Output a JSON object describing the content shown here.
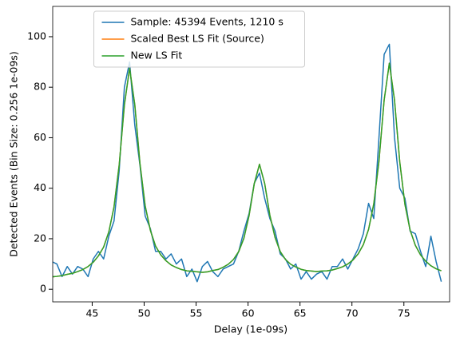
{
  "chart_data": {
    "type": "line",
    "xlabel": "Delay (1e-09s)",
    "ylabel": "Detected Events (Bin Size: 0.256 1e-09s)",
    "x": [
      41.1,
      41.6,
      42.1,
      42.6,
      43.1,
      43.6,
      44.1,
      44.6,
      45.1,
      45.6,
      46.1,
      46.6,
      47.1,
      47.6,
      48.1,
      48.6,
      49.1,
      49.6,
      50.1,
      50.6,
      51.1,
      51.6,
      52.1,
      52.6,
      53.1,
      53.6,
      54.1,
      54.6,
      55.1,
      55.6,
      56.1,
      56.6,
      57.1,
      57.6,
      58.1,
      58.6,
      59.1,
      59.6,
      60.1,
      60.6,
      61.1,
      61.6,
      62.1,
      62.6,
      63.1,
      63.6,
      64.1,
      64.6,
      65.1,
      65.6,
      66.1,
      66.6,
      67.1,
      67.6,
      68.1,
      68.6,
      69.1,
      69.6,
      70.1,
      70.6,
      71.1,
      71.6,
      72.1,
      72.6,
      73.1,
      73.6,
      74.1,
      74.6,
      75.1,
      75.6,
      76.1,
      76.6,
      77.1,
      77.6,
      78.1,
      78.6
    ],
    "series": [
      {
        "name": "Sample: 45394 Events, 1210 s",
        "color": "#1f77b4",
        "values": [
          11,
          10,
          5,
          9,
          6,
          9,
          8,
          5,
          12,
          15,
          12,
          21,
          27,
          47,
          80,
          90,
          65,
          49,
          29,
          24,
          15,
          15,
          12,
          14,
          10,
          12,
          5,
          8,
          3,
          9,
          11,
          7,
          5,
          8,
          9,
          10,
          15,
          23,
          30,
          42,
          46,
          36,
          28,
          23,
          14,
          12,
          8,
          10,
          4,
          7,
          4,
          6,
          7,
          4,
          9,
          9,
          12,
          8,
          12,
          16,
          22,
          34,
          28,
          60,
          93,
          97,
          60,
          40,
          36,
          23,
          22,
          15,
          9,
          21,
          11,
          3
        ]
      },
      {
        "name": "Scaled Best LS Fit (Source)",
        "color": "#ff7f0e",
        "values": [
          4.9,
          5.1,
          5.4,
          5.9,
          6.3,
          7.0,
          7.8,
          9.0,
          10.7,
          13.2,
          16.7,
          22.7,
          32.6,
          49.3,
          73.0,
          87.5,
          73.1,
          49.7,
          33.0,
          23.3,
          17.1,
          13.6,
          11.3,
          9.6,
          8.6,
          7.8,
          7.3,
          7.1,
          6.9,
          6.7,
          6.9,
          7.4,
          7.8,
          8.7,
          9.9,
          11.8,
          14.9,
          20.2,
          29.2,
          41.8,
          49.5,
          41.9,
          29.3,
          20.5,
          14.9,
          11.8,
          9.9,
          8.8,
          7.9,
          7.4,
          7.2,
          7.0,
          7.2,
          7.3,
          7.6,
          8.2,
          8.9,
          10.0,
          11.6,
          14.0,
          17.7,
          23.7,
          33.8,
          50.7,
          74.9,
          89.5,
          74.8,
          50.5,
          33.6,
          23.4,
          17.4,
          13.6,
          11.1,
          9.3,
          8.1,
          7.3
        ]
      },
      {
        "name": "New LS Fit",
        "color": "#2ca02c",
        "values": [
          4.9,
          5.1,
          5.4,
          5.9,
          6.3,
          7.0,
          7.8,
          9.0,
          10.7,
          13.2,
          16.7,
          22.7,
          32.6,
          49.3,
          73.0,
          87.5,
          73.1,
          49.7,
          33.0,
          23.3,
          17.1,
          13.6,
          11.3,
          9.6,
          8.6,
          7.8,
          7.3,
          7.1,
          6.9,
          6.7,
          6.9,
          7.4,
          7.8,
          8.7,
          9.9,
          11.8,
          14.9,
          20.2,
          29.2,
          41.8,
          49.5,
          41.9,
          29.3,
          20.5,
          14.9,
          11.8,
          9.9,
          8.8,
          7.9,
          7.4,
          7.2,
          7.0,
          7.2,
          7.3,
          7.6,
          8.2,
          8.9,
          10.0,
          11.6,
          14.0,
          17.7,
          23.7,
          33.8,
          50.7,
          74.9,
          89.5,
          74.8,
          50.5,
          33.6,
          23.4,
          17.4,
          13.6,
          11.1,
          9.3,
          8.1,
          7.3
        ]
      }
    ],
    "xlim": [
      41.2,
      79.4
    ],
    "ylim": [
      -5,
      112
    ],
    "xticks": [
      45,
      50,
      55,
      60,
      65,
      70,
      75
    ],
    "yticks": [
      0,
      20,
      40,
      60,
      80,
      100
    ],
    "legend": "upper center",
    "grid": false
  }
}
